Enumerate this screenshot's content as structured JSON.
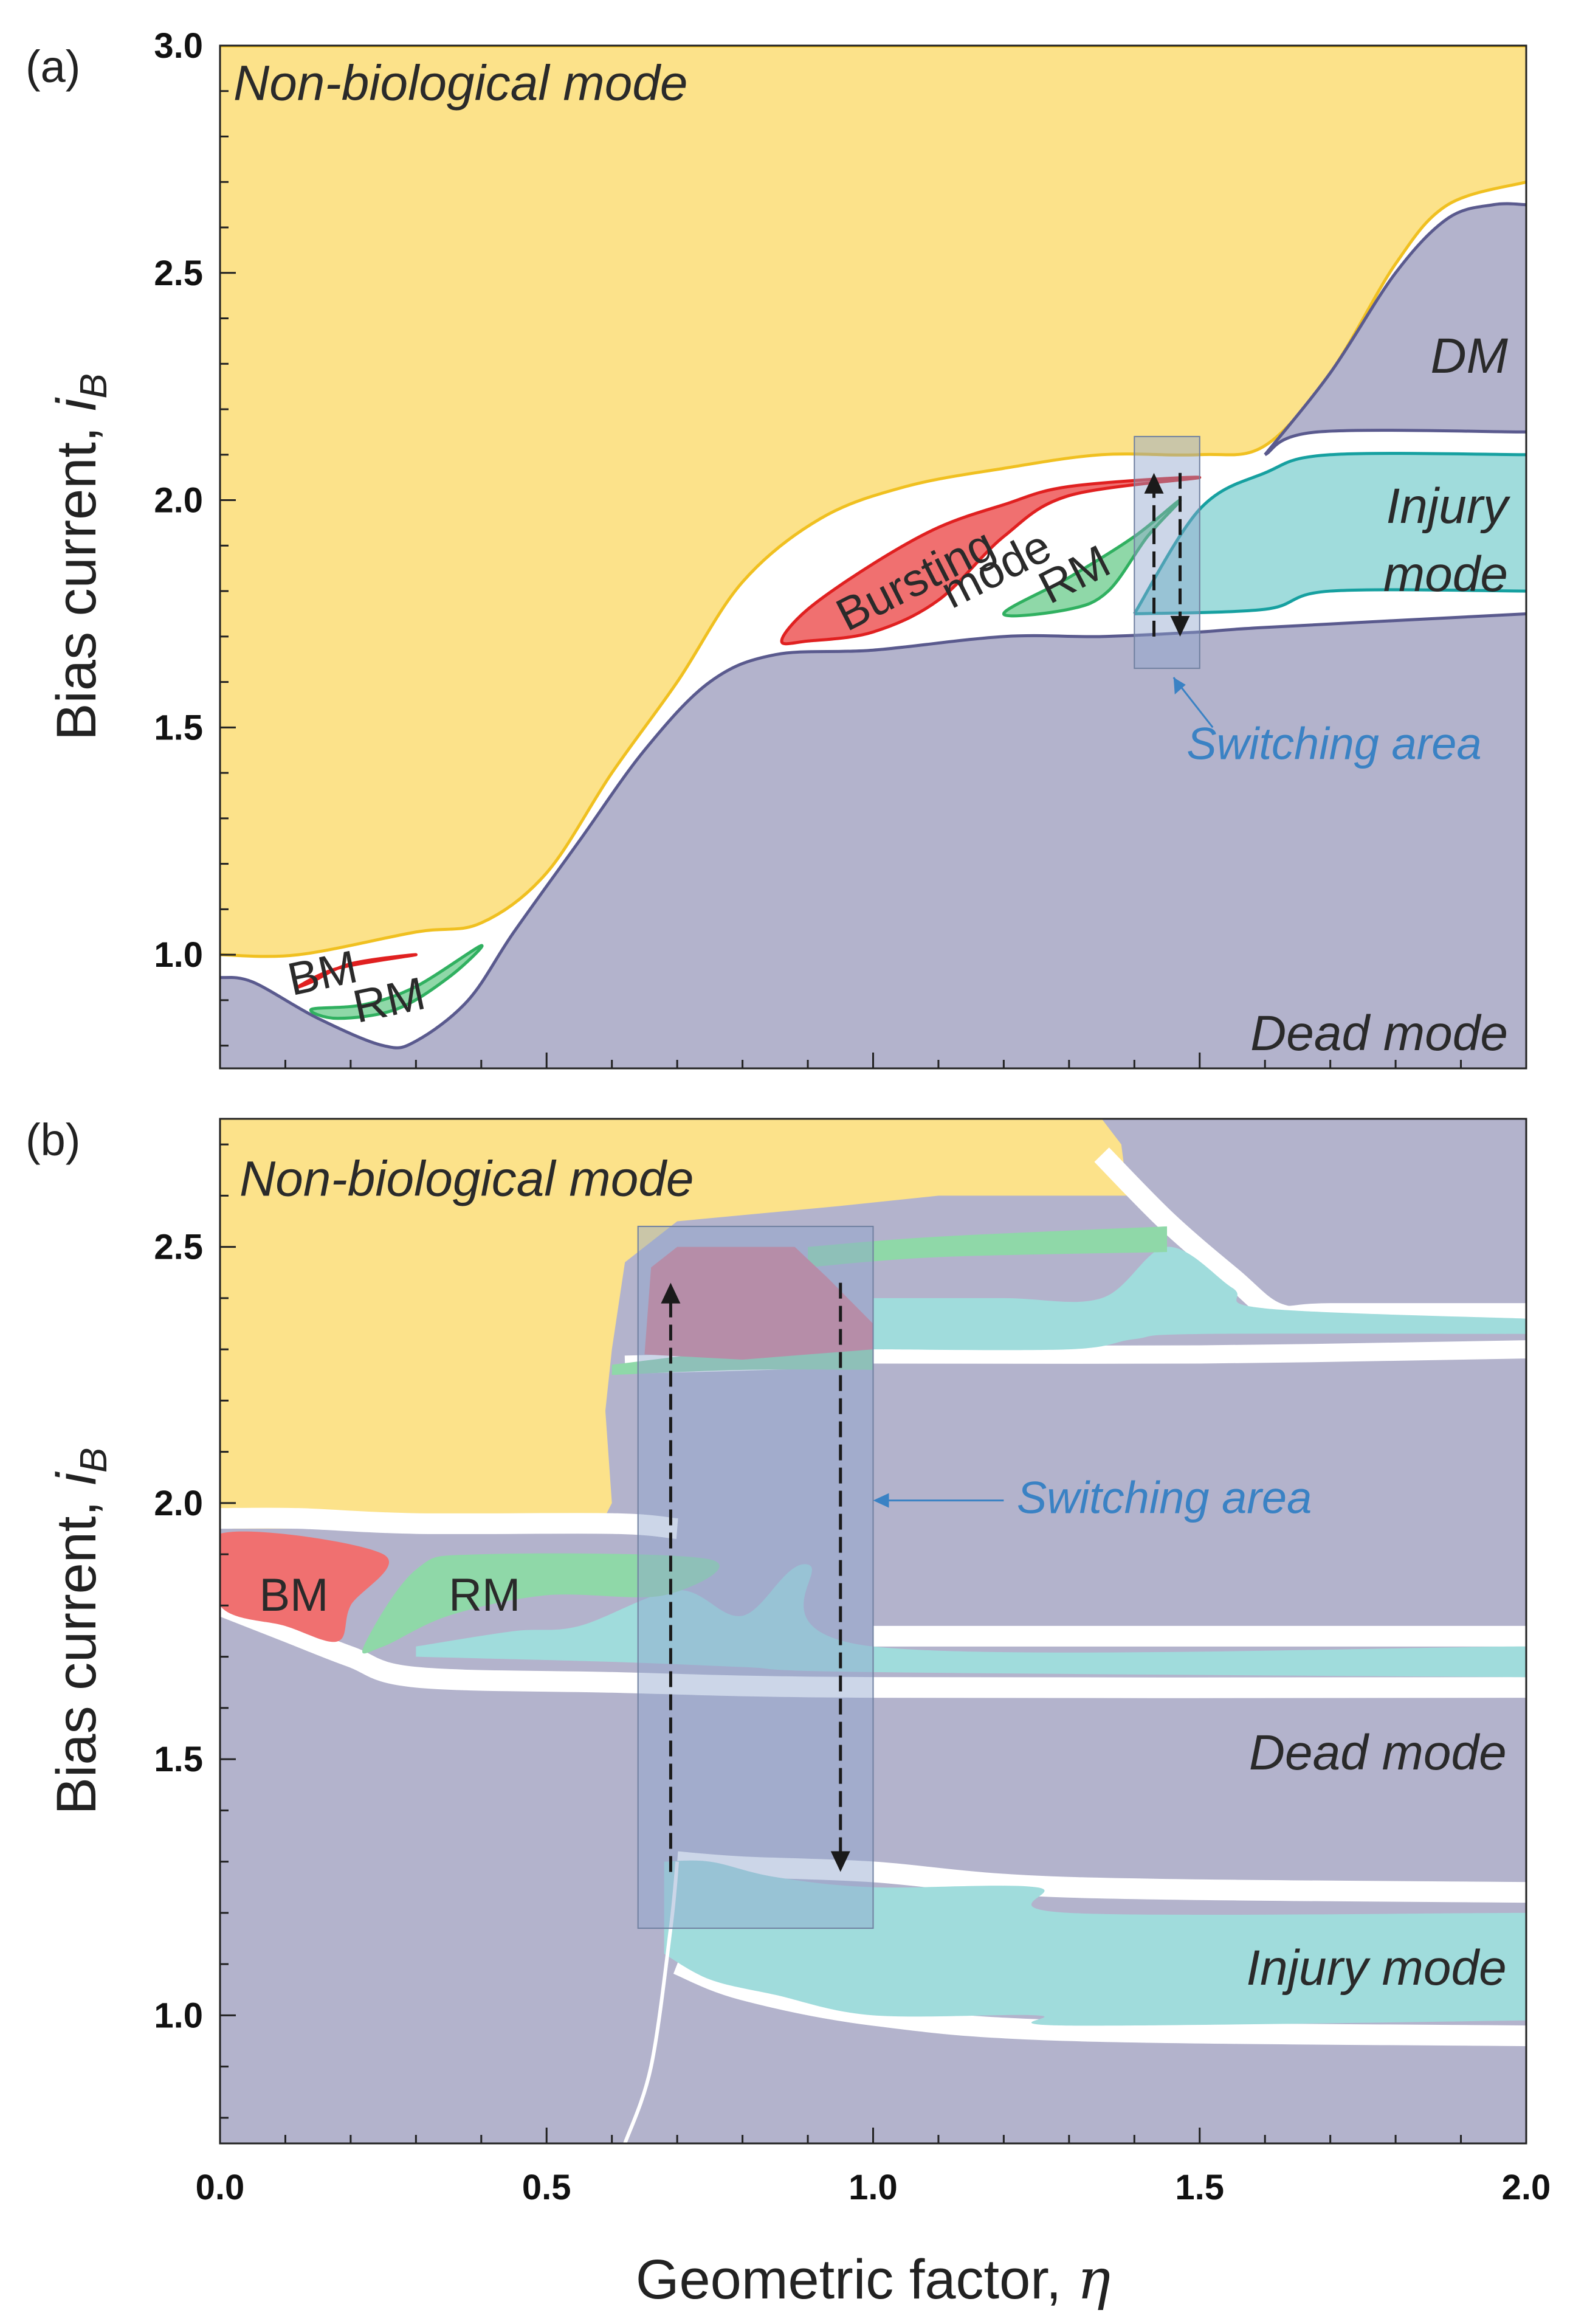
{
  "chart_data": [
    {
      "panel": "(a)",
      "type": "area",
      "xlabel": "",
      "ylabel": "Bias current, ",
      "ylabel_sub": "B",
      "ylabel_var": "i",
      "xlim": [
        0.0,
        2.0
      ],
      "ylim": [
        0.75,
        3.0
      ],
      "yticks": [
        1.0,
        1.5,
        2.0,
        2.5,
        3.0
      ],
      "xticks": [
        0.0,
        0.5,
        1.0,
        1.5,
        2.0
      ],
      "regions": [
        {
          "name": "Non-biological mode",
          "label": "Non-biological mode",
          "color": "#fce28a",
          "points": [
            [
              0.0,
              1.0
            ],
            [
              0.12,
              1.0
            ],
            [
              0.3,
              1.05
            ],
            [
              0.4,
              1.07
            ],
            [
              0.5,
              1.18
            ],
            [
              0.6,
              1.4
            ],
            [
              0.7,
              1.6
            ],
            [
              0.8,
              1.82
            ],
            [
              0.92,
              1.96
            ],
            [
              1.05,
              2.03
            ],
            [
              1.2,
              2.07
            ],
            [
              1.35,
              2.1
            ],
            [
              1.5,
              2.1
            ],
            [
              1.6,
              2.12
            ],
            [
              1.7,
              2.28
            ],
            [
              1.8,
              2.52
            ],
            [
              1.88,
              2.65
            ],
            [
              2.0,
              2.7
            ]
          ],
          "top": 3.0
        },
        {
          "name": "Dead mode",
          "label": "Dead mode",
          "color": "#b3b3cc",
          "points": [
            [
              0.0,
              0.95
            ],
            [
              0.05,
              0.94
            ],
            [
              0.15,
              0.86
            ],
            [
              0.25,
              0.8
            ],
            [
              0.3,
              0.81
            ],
            [
              0.38,
              0.9
            ],
            [
              0.45,
              1.05
            ],
            [
              0.55,
              1.25
            ],
            [
              0.65,
              1.45
            ],
            [
              0.75,
              1.6
            ],
            [
              0.85,
              1.66
            ],
            [
              1.0,
              1.67
            ],
            [
              1.2,
              1.7
            ],
            [
              1.35,
              1.7
            ],
            [
              1.5,
              1.71
            ],
            [
              1.6,
              1.72
            ],
            [
              2.0,
              1.75
            ]
          ],
          "bottom": 0.75
        },
        {
          "name": "DM",
          "label": "DM",
          "color": "#b3b3cc",
          "points": [
            [
              1.6,
              2.1
            ],
            [
              1.68,
              2.15
            ],
            [
              2.0,
              2.15
            ]
          ],
          "top_points": [
            [
              1.6,
              2.1
            ],
            [
              1.7,
              2.28
            ],
            [
              1.8,
              2.5
            ],
            [
              1.88,
              2.62
            ],
            [
              1.95,
              2.65
            ],
            [
              2.0,
              2.65
            ]
          ]
        },
        {
          "name": "Injury mode",
          "label": "Injury mode",
          "label_lines": [
            "Injury",
            "mode"
          ],
          "color": "#a0dcdc",
          "bottom_points": [
            [
              1.4,
              1.75
            ],
            [
              1.6,
              1.76
            ],
            [
              1.7,
              1.8
            ],
            [
              2.0,
              1.8
            ]
          ],
          "top_points": [
            [
              1.4,
              1.75
            ],
            [
              1.5,
              1.98
            ],
            [
              1.6,
              2.06
            ],
            [
              1.7,
              2.1
            ],
            [
              2.0,
              2.1
            ]
          ]
        },
        {
          "name": "Bursting mode",
          "label": "Bursting mode",
          "label_lines": [
            "Bursting",
            "mode"
          ],
          "color": "#f07070",
          "points": [
            [
              0.86,
              1.69
            ],
            [
              0.9,
              1.76
            ],
            [
              1.0,
              1.86
            ],
            [
              1.1,
              1.94
            ],
            [
              1.2,
              1.99
            ],
            [
              1.3,
              2.03
            ],
            [
              1.5,
              2.05
            ],
            [
              1.3,
              2.01
            ],
            [
              1.2,
              1.92
            ],
            [
              1.1,
              1.78
            ],
            [
              1.0,
              1.71
            ],
            [
              0.9,
              1.69
            ]
          ]
        },
        {
          "name": "RM (a, upper)",
          "label": "RM",
          "color": "#8fd8a8",
          "points": [
            [
              1.2,
              1.75
            ],
            [
              1.3,
              1.83
            ],
            [
              1.4,
              1.92
            ],
            [
              1.47,
              2.0
            ],
            [
              1.42,
              1.92
            ],
            [
              1.36,
              1.8
            ],
            [
              1.3,
              1.76
            ]
          ]
        },
        {
          "name": "BM (a)",
          "label": "BM",
          "color": "#f07070",
          "points": [
            [
              0.12,
              0.93
            ],
            [
              0.18,
              0.97
            ],
            [
              0.3,
              1.0
            ],
            [
              0.2,
              0.98
            ],
            [
              0.14,
              0.94
            ]
          ]
        },
        {
          "name": "RM (a, lower)",
          "label": "RM",
          "color": "#8fd8a8",
          "points": [
            [
              0.14,
              0.88
            ],
            [
              0.22,
              0.89
            ],
            [
              0.3,
              0.93
            ],
            [
              0.4,
              1.02
            ],
            [
              0.35,
              0.95
            ],
            [
              0.27,
              0.88
            ],
            [
              0.18,
              0.86
            ]
          ]
        }
      ],
      "switching_area": {
        "label": "Switching area",
        "x": [
          1.4,
          1.5
        ],
        "y": [
          1.63,
          2.14
        ]
      },
      "arrows": [
        {
          "x": 1.43,
          "from": 1.7,
          "to": 2.06
        },
        {
          "x": 1.47,
          "from": 2.06,
          "to": 1.7
        }
      ]
    },
    {
      "panel": "(b)",
      "type": "area",
      "xlabel": "Geometric factor, ",
      "xlabel_var": "η",
      "ylabel": "Bias current, ",
      "ylabel_sub": "B",
      "ylabel_var": "i",
      "xlim": [
        0.0,
        2.0
      ],
      "ylim": [
        0.75,
        2.75
      ],
      "yticks": [
        1.0,
        1.5,
        2.0,
        2.5
      ],
      "xticks": [
        0.0,
        0.5,
        1.0,
        1.5,
        2.0
      ],
      "regions": [
        {
          "name": "Non-biological mode",
          "label": "Non-biological mode",
          "color": "#fce28a"
        },
        {
          "name": "Dead mode",
          "label": "Dead mode",
          "color": "#b3b3cc"
        },
        {
          "name": "Injury mode",
          "label": "Injury mode",
          "color": "#a0dcdc"
        },
        {
          "name": "BM (b)",
          "label": "BM",
          "color": "#f07070"
        },
        {
          "name": "RM (b)",
          "label": "RM",
          "color": "#8fd8a8"
        },
        {
          "name": "Bursting (b)",
          "label": "",
          "color": "#d87a8a"
        }
      ],
      "switching_area": {
        "label": "Switching area",
        "x": [
          0.64,
          1.0
        ],
        "y": [
          1.17,
          2.54
        ]
      },
      "arrows": [
        {
          "x": 0.69,
          "from": 1.28,
          "to": 2.43
        },
        {
          "x": 0.95,
          "from": 2.43,
          "to": 1.28
        }
      ]
    }
  ],
  "colors": {
    "nonbio": "#fce28a",
    "nonbio_edge": "#f0c020",
    "dead": "#b3b3cc",
    "dead_edge": "#5a5a8e",
    "injury": "#a0dcdc",
    "injury_edge": "#16a0a0",
    "burst": "#f07070",
    "burst_edge": "#e02020",
    "rm": "#8fd8a8",
    "rm_edge": "#30b060",
    "switch_fill": "#8fa3cc",
    "switch_label": "#3a82c4"
  }
}
